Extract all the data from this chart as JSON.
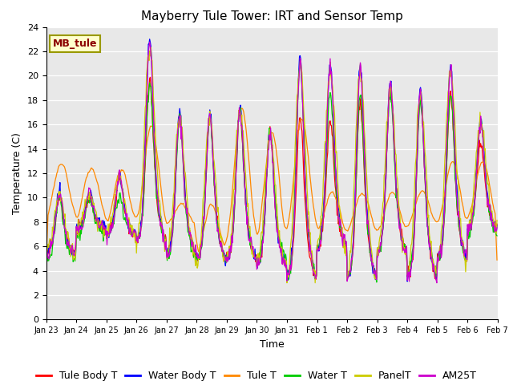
{
  "title": "Mayberry Tule Tower: IRT and Sensor Temp",
  "xlabel": "Time",
  "ylabel": "Temperature (C)",
  "ylim": [
    0,
    24
  ],
  "yticks": [
    0,
    2,
    4,
    6,
    8,
    10,
    12,
    14,
    16,
    18,
    20,
    22,
    24
  ],
  "xtick_labels": [
    "Jan 23",
    "Jan 24",
    "Jan 25",
    "Jan 26",
    "Jan 27",
    "Jan 28",
    "Jan 29",
    "Jan 30",
    "Jan 31",
    "Feb 1",
    "Feb 2",
    "Feb 3",
    "Feb 4",
    "Feb 5",
    "Feb 6",
    "Feb 7"
  ],
  "station_label": "MB_tule",
  "series_names": [
    "Tule Body T",
    "Water Body T",
    "Tule T",
    "Water T",
    "PanelT",
    "AM25T"
  ],
  "series_colors": [
    "#ff0000",
    "#0000ff",
    "#ff8800",
    "#00cc00",
    "#cccc00",
    "#cc00cc"
  ],
  "background_color": "#e8e8e8",
  "title_fontsize": 11,
  "axis_fontsize": 9,
  "tick_fontsize": 8,
  "legend_fontsize": 9,
  "linewidth": 0.9
}
